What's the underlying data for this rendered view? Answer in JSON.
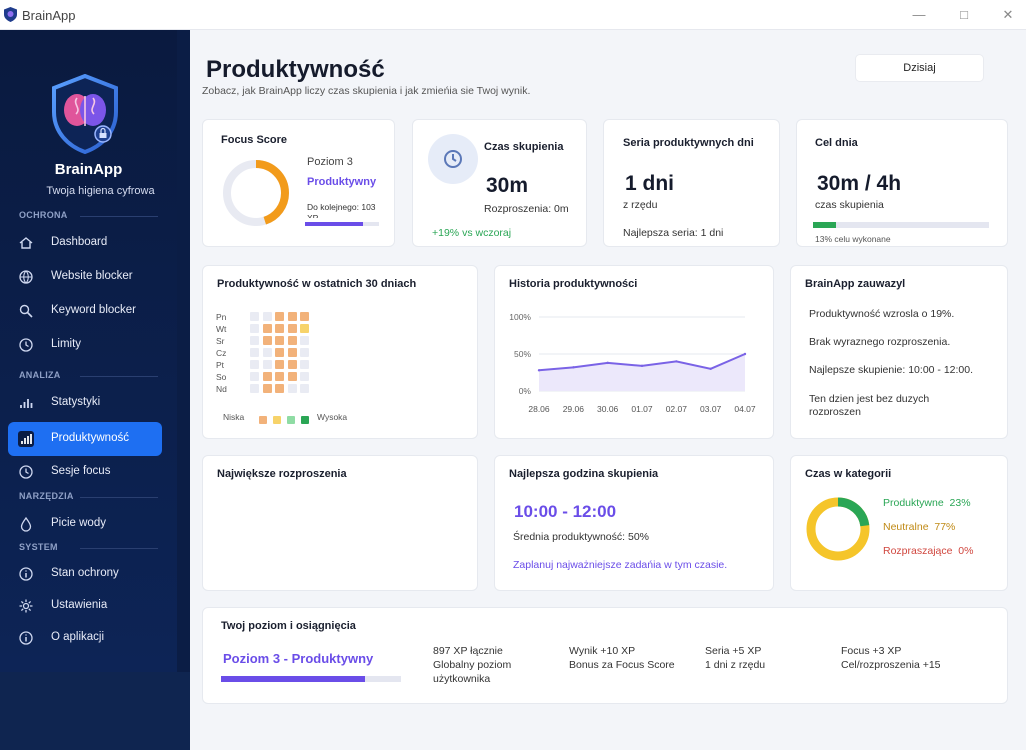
{
  "window": {
    "title": "BrainApp"
  },
  "sidebar": {
    "brand_name": "BrainApp",
    "brand_sub": "Twoja higiena cyfrowa",
    "sections": {
      "ochrona": "OCHRONA",
      "analiza": "ANALIZA",
      "narzedzia": "NARZĘDZIA",
      "system": "SYSTEM"
    },
    "items": [
      {
        "label": "Dashboard",
        "icon": "home-icon"
      },
      {
        "label": "Website blocker",
        "icon": "globe-icon"
      },
      {
        "label": "Keyword blocker",
        "icon": "search-icon"
      },
      {
        "label": "Limity",
        "icon": "clock-icon"
      },
      {
        "label": "Statystyki",
        "icon": "bar-chart-icon"
      },
      {
        "label": "Produktywność",
        "icon": "bar-chart-icon",
        "active": true
      },
      {
        "label": "Sesje focus",
        "icon": "clock-icon"
      },
      {
        "label": "Picie wody",
        "icon": "water-drop-icon"
      },
      {
        "label": "Stan ochrony",
        "icon": "info-icon"
      },
      {
        "label": "Ustawienia",
        "icon": "gear-icon"
      },
      {
        "label": "O aplikacji",
        "icon": "info-icon"
      }
    ]
  },
  "header": {
    "title": "Produktywność",
    "subtitle": "Zobacz, jak BrainApp liczy czas skupienia i jak zmieńia sie Twoj wynik.",
    "today_button": "Dzisiaj"
  },
  "cards": {
    "focus": {
      "title": "Focus Score",
      "level": "Poziom 3",
      "state": "Produktywny",
      "next": "Do kolejnego: 103",
      "next_cut": "XP",
      "ring_progress": 0.45,
      "bar_progress": 0.78
    },
    "czas": {
      "title": "Czas skupienia",
      "value": "30m",
      "distractions": "Rozproszenia: 0m",
      "change": "+19% vs wczoraj"
    },
    "seria": {
      "title": "Seria produktywnych dni",
      "value": "1 dni",
      "unit": "z rzędu",
      "best": "Najlepsza seria: 1 dni"
    },
    "cel": {
      "title": "Cel dnia",
      "value": "30m / 4h",
      "unit": "czas skupienia",
      "progress": 0.13,
      "progress_label": "13% celu wykonane"
    },
    "heatmap": {
      "title": "Produktywność w ostatnich 30 dniach",
      "days": [
        "Pn",
        "Wt",
        "Sr",
        "Cz",
        "Pt",
        "So",
        "Nd"
      ],
      "low": "Niska",
      "high": "Wysoka"
    },
    "history": {
      "title": "Historia produktywności"
    },
    "insights": {
      "title": "BrainApp zauwazyl",
      "items": [
        "Produktywność wzrosla o 19%.",
        "Brak wyraznego rozproszenia.",
        "Najlepsze skupienie: 10:00 - 12:00.",
        "Ten dzien jest bez duzych",
        "rozproszen"
      ]
    },
    "distractions": {
      "title": "Największe rozproszenia"
    },
    "besthour": {
      "title": "Najlepsza godzina skupienia",
      "value": "10:00 - 12:00",
      "avg": "Średnia produktywność: 50%",
      "tip": "Zaplanuj najważniejsze zadańia w tym czasie."
    },
    "categories": {
      "title": "Czas w kategorii",
      "items": [
        {
          "label": "Produktywne",
          "pct": "23%",
          "value": 23,
          "color": "#2aa655"
        },
        {
          "label": "Neutralne",
          "pct": "77%",
          "value": 77,
          "color": "#f5c52a"
        },
        {
          "label": "Rozpraszające",
          "pct": "0%",
          "value": 0,
          "color": "#d9534f"
        }
      ]
    },
    "level": {
      "title": "Twoj poziom i osiągnięcia",
      "value": "Poziom 3 - Produktywny",
      "progress": 0.8,
      "stats": [
        {
          "l1": "897 XP łącznie",
          "l2": "Globalny poziom",
          "l3": "użytkownika"
        },
        {
          "l1": "Wynik +10 XP",
          "l2": "Bonus za Focus Score",
          "l3": ""
        },
        {
          "l1": "Seria +5 XP",
          "l2": "1 dni z rzędu",
          "l3": ""
        },
        {
          "l1": "Focus +3 XP",
          "l2": "Cel/rozproszenia +15",
          "l3": ""
        }
      ]
    }
  },
  "chart_data": {
    "type": "line",
    "title": "Historia produktywności",
    "x": [
      "28.06",
      "29.06",
      "30.06",
      "01.07",
      "02.07",
      "03.07",
      "04.07"
    ],
    "y": [
      28,
      32,
      38,
      34,
      40,
      30,
      50
    ],
    "yticks": [
      "100%",
      "50%",
      "0%"
    ],
    "ylim": [
      0,
      100
    ],
    "grid": true,
    "color": "#7a63e6"
  },
  "colors": {
    "accent": "#1e6ff2",
    "purple": "#6a4de8",
    "green": "#2aa655",
    "orange": "#f29b1b"
  }
}
